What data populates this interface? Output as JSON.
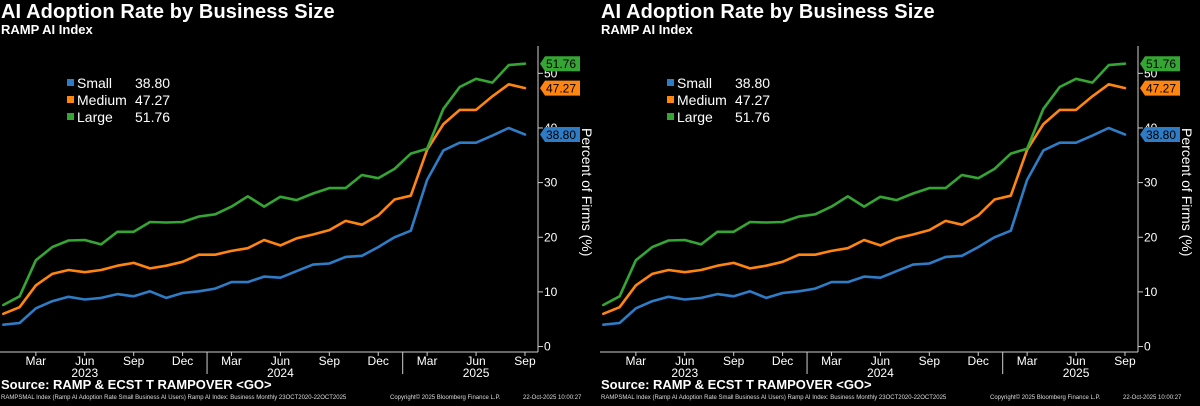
{
  "chart": {
    "title": "AI Adoption Rate by Business Size",
    "subtitle": "RAMP AI Index",
    "source": "Source: RAMP & ECST T RAMPOVER <GO>",
    "footer_left": "RAMPSMAL Index (Ramp AI Adoption Rate Small Business AI Users) Ramp AI Index: Business Monthly 23OCT2020-22OCT2025",
    "footer_mid": "Copyright© 2025 Bloomberg Finance L.P.",
    "footer_right": "22-Oct-2025 10:00:27"
  },
  "chart_data": {
    "type": "line",
    "ylabel": "Percent of Firms (%)",
    "ylim": [
      -1,
      55
    ],
    "yticks": [
      0,
      10,
      20,
      30,
      40,
      50
    ],
    "grid": false,
    "legend_position": "top-left",
    "colors": {
      "Small": "#2f7cc6",
      "Medium": "#ff8410",
      "Large": "#35a533"
    },
    "x_tick_labels": [
      "Mar",
      "Jun",
      "Sep",
      "Dec",
      "Mar",
      "Jun",
      "Sep",
      "Dec",
      "Mar",
      "Jun",
      "Sep"
    ],
    "x_tick_positions": [
      2,
      5,
      8,
      11,
      14,
      17,
      20,
      23,
      26,
      29,
      32
    ],
    "year_labels": [
      {
        "label": "2023",
        "position": 5
      },
      {
        "label": "2024",
        "position": 17
      },
      {
        "label": "2025",
        "position": 29
      }
    ],
    "x_range": [
      -0.2,
      32.8
    ],
    "series": [
      {
        "name": "Small",
        "last_value": "38.80",
        "values": [
          4.0,
          4.3,
          7.0,
          8.3,
          9.1,
          8.6,
          8.9,
          9.6,
          9.2,
          10.1,
          8.9,
          9.8,
          10.1,
          10.6,
          11.8,
          11.8,
          12.8,
          12.6,
          13.8,
          15.0,
          15.2,
          16.4,
          16.6,
          18.2,
          20.0,
          21.2,
          30.5,
          35.9,
          37.3,
          37.3,
          38.6,
          40.0,
          38.8
        ]
      },
      {
        "name": "Medium",
        "last_value": "47.27",
        "values": [
          6.0,
          7.2,
          11.2,
          13.3,
          14.0,
          13.6,
          14.0,
          14.8,
          15.3,
          14.3,
          14.8,
          15.5,
          16.8,
          16.8,
          17.5,
          18.0,
          19.5,
          18.5,
          19.8,
          20.5,
          21.3,
          23.0,
          22.3,
          24.0,
          26.9,
          27.6,
          36.0,
          40.7,
          43.3,
          43.3,
          45.8,
          48.0,
          47.3
        ]
      },
      {
        "name": "Large",
        "last_value": "51.76",
        "values": [
          7.6,
          9.2,
          15.8,
          18.2,
          19.4,
          19.5,
          18.7,
          21.0,
          21.0,
          22.8,
          22.7,
          22.8,
          23.8,
          24.2,
          25.6,
          27.5,
          25.6,
          27.4,
          26.8,
          28.0,
          29.0,
          29.0,
          31.4,
          30.8,
          32.5,
          35.3,
          36.2,
          43.5,
          47.5,
          49.0,
          48.3,
          51.5,
          51.76
        ]
      }
    ]
  }
}
